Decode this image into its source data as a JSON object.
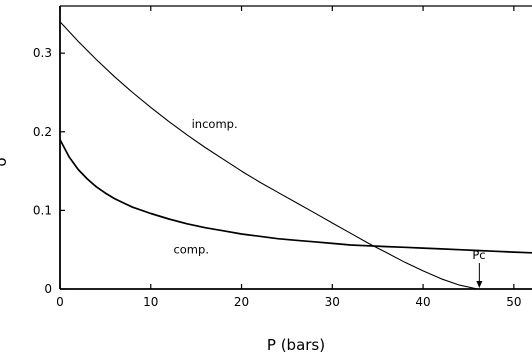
{
  "chart_data": {
    "type": "line",
    "xlabel": "P (bars)",
    "ylabel": "δ",
    "xlim": [
      0,
      52
    ],
    "ylim": [
      0,
      0.36
    ],
    "x_ticks": [
      0,
      10,
      20,
      30,
      40,
      50
    ],
    "x_tick_labels": [
      "0",
      "10",
      "20",
      "30",
      "40",
      "50"
    ],
    "y_ticks": [
      0,
      0.1,
      0.2,
      0.3
    ],
    "y_tick_labels": [
      "0",
      "0.1",
      "0.2",
      "0.3"
    ],
    "grid": false,
    "series": [
      {
        "name": "incomp.",
        "x": [
          0,
          2,
          4,
          6,
          8,
          10,
          12,
          14,
          16,
          18,
          20,
          22,
          24,
          26,
          28,
          30,
          32,
          34,
          36,
          38,
          40,
          42,
          44,
          46
        ],
        "y": [
          0.34,
          0.315,
          0.292,
          0.27,
          0.25,
          0.231,
          0.213,
          0.196,
          0.18,
          0.165,
          0.15,
          0.136,
          0.123,
          0.11,
          0.097,
          0.084,
          0.071,
          0.058,
          0.046,
          0.034,
          0.023,
          0.013,
          0.005,
          0.0
        ]
      },
      {
        "name": "comp.",
        "x": [
          0,
          1,
          2,
          3,
          4,
          5,
          6,
          8,
          10,
          12,
          14,
          16,
          18,
          20,
          22,
          24,
          26,
          28,
          30,
          32,
          34,
          36,
          38,
          40,
          42,
          44,
          46,
          48,
          50,
          52
        ],
        "y": [
          0.19,
          0.168,
          0.152,
          0.14,
          0.13,
          0.122,
          0.115,
          0.104,
          0.096,
          0.089,
          0.083,
          0.078,
          0.074,
          0.07,
          0.067,
          0.064,
          0.062,
          0.06,
          0.058,
          0.056,
          0.055,
          0.054,
          0.053,
          0.052,
          0.051,
          0.05,
          0.049,
          0.048,
          0.047,
          0.046
        ]
      }
    ],
    "annotations": [
      {
        "text": "incomp.",
        "x": 14.5,
        "y": 0.205
      },
      {
        "text": "comp.",
        "x": 12.5,
        "y": 0.045
      },
      {
        "text": "Pc",
        "x": 46.2,
        "y": 0.0
      }
    ]
  }
}
